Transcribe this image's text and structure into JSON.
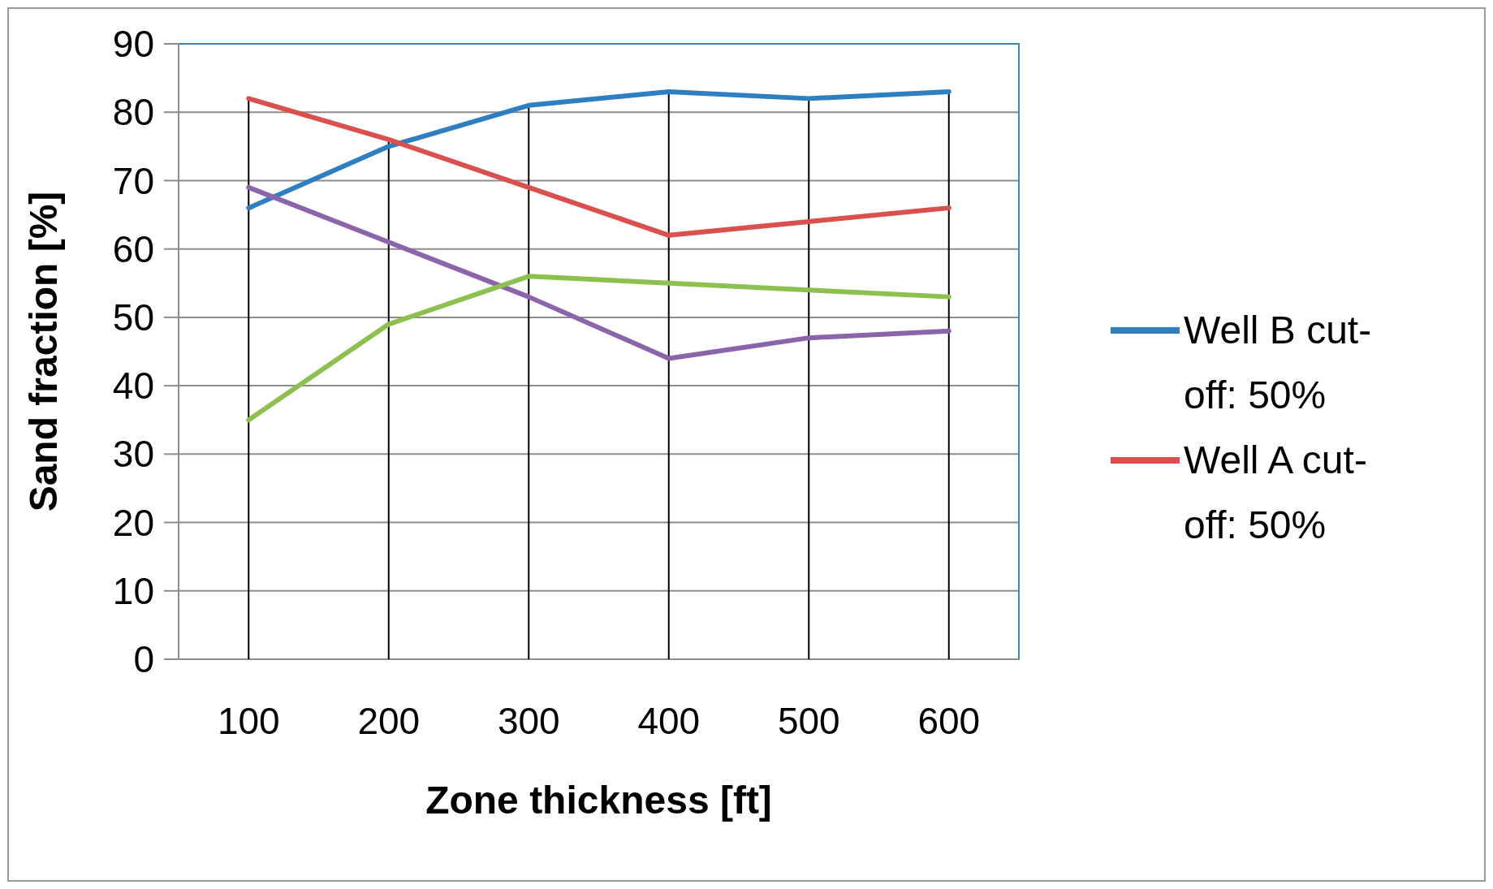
{
  "chart_data": {
    "type": "line",
    "xlabel": "Zone thickness [ft]",
    "ylabel": "Sand fraction [%]",
    "categories": [
      "100",
      "200",
      "300",
      "400",
      "500",
      "600"
    ],
    "ylim": [
      0,
      90
    ],
    "yticks": [
      0,
      10,
      20,
      30,
      40,
      50,
      60,
      70,
      80,
      90
    ],
    "grid": true,
    "legend": "right",
    "marker": "none",
    "line_style": "solid",
    "series": [
      {
        "name": "Well B cut-off: 50%",
        "color": "#2e7fc1",
        "values": [
          66,
          75,
          81,
          83,
          82,
          83
        ]
      },
      {
        "name": "Well A cut-off: 50%",
        "color": "#d9504c",
        "values": [
          82,
          76,
          69,
          62,
          64,
          66
        ]
      },
      {
        "color": "#8b64ab",
        "values": [
          69,
          61,
          53,
          44,
          47,
          48
        ]
      },
      {
        "color": "#8cc04f",
        "values": [
          35,
          49,
          56,
          55,
          54,
          53
        ]
      }
    ]
  }
}
